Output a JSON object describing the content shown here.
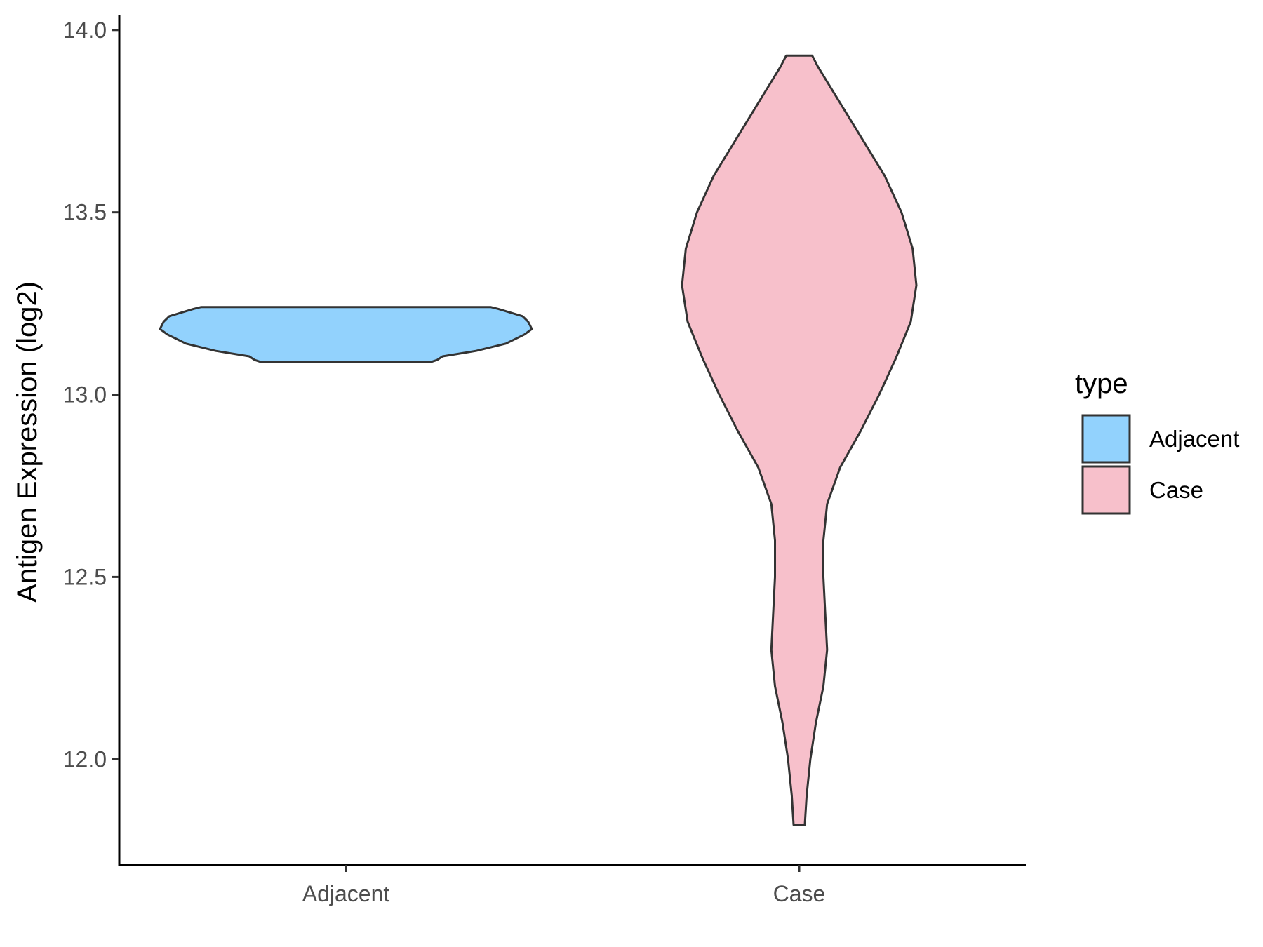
{
  "chart_data": {
    "type": "violin",
    "xlabel": "",
    "ylabel": "Antigen Expression (log2)",
    "ylim": [
      11.71,
      14.04
    ],
    "yticks": [
      12.0,
      12.5,
      13.0,
      13.5,
      14.0
    ],
    "ytick_labels": [
      "12.0",
      "12.5",
      "13.0",
      "13.5",
      "14.0"
    ],
    "categories": [
      "Adjacent",
      "Case"
    ],
    "grid": false,
    "legend": {
      "title": "type",
      "position": "right",
      "entries": [
        "Adjacent",
        "Case"
      ]
    },
    "series": [
      {
        "name": "Adjacent",
        "color": "#92d2fd",
        "min": 13.09,
        "max": 13.24,
        "profile": [
          [
            13.09,
            0.46
          ],
          [
            13.095,
            0.49
          ],
          [
            13.105,
            0.52
          ],
          [
            13.12,
            0.7
          ],
          [
            13.14,
            0.86
          ],
          [
            13.165,
            0.96
          ],
          [
            13.18,
            1.0
          ],
          [
            13.2,
            0.98
          ],
          [
            13.215,
            0.95
          ],
          [
            13.235,
            0.82
          ],
          [
            13.24,
            0.78
          ]
        ]
      },
      {
        "name": "Case",
        "color": "#f7c0cb",
        "min": 11.82,
        "max": 13.93,
        "profile": [
          [
            11.82,
            0.03
          ],
          [
            11.9,
            0.04
          ],
          [
            12.0,
            0.06
          ],
          [
            12.1,
            0.09
          ],
          [
            12.2,
            0.13
          ],
          [
            12.3,
            0.15
          ],
          [
            12.4,
            0.14
          ],
          [
            12.5,
            0.13
          ],
          [
            12.6,
            0.13
          ],
          [
            12.7,
            0.15
          ],
          [
            12.8,
            0.22
          ],
          [
            12.9,
            0.33
          ],
          [
            13.0,
            0.43
          ],
          [
            13.1,
            0.52
          ],
          [
            13.2,
            0.6
          ],
          [
            13.3,
            0.63
          ],
          [
            13.4,
            0.61
          ],
          [
            13.5,
            0.55
          ],
          [
            13.6,
            0.46
          ],
          [
            13.7,
            0.34
          ],
          [
            13.8,
            0.22
          ],
          [
            13.9,
            0.1
          ],
          [
            13.93,
            0.07
          ]
        ]
      }
    ]
  }
}
